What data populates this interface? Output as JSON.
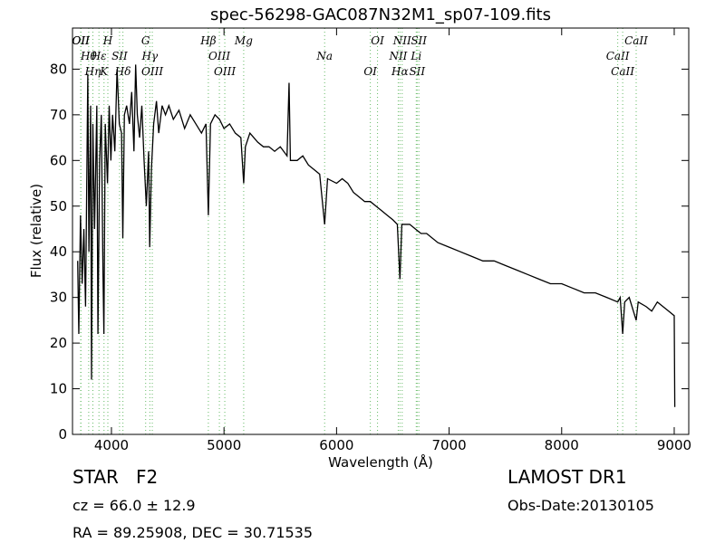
{
  "chart_data": {
    "type": "line",
    "title": "spec-56298-GAC087N32M1_sp07-109.fits",
    "x_label": "Wavelength (Å)",
    "y_label": "Flux (relative)",
    "xlim": [
      3654,
      9129
    ],
    "ylim": [
      0,
      89
    ],
    "xticks": [
      4000,
      5000,
      6000,
      7000,
      8000,
      9000
    ],
    "yticks": [
      0,
      10,
      20,
      30,
      40,
      50,
      60,
      70,
      80
    ],
    "color": "#000000",
    "line_color": "#66bb66",
    "grid": false,
    "x": [
      3700,
      3710,
      3725,
      3740,
      3755,
      3770,
      3790,
      3800,
      3815,
      3823,
      3835,
      3850,
      3870,
      3880,
      3895,
      3910,
      3925,
      3933,
      3945,
      3965,
      3980,
      3995,
      4010,
      4030,
      4050,
      4070,
      4090,
      4101,
      4115,
      4135,
      4160,
      4180,
      4200,
      4215,
      4230,
      4250,
      4270,
      4290,
      4310,
      4330,
      4340,
      4355,
      4375,
      4400,
      4420,
      4450,
      4480,
      4510,
      4550,
      4600,
      4650,
      4700,
      4750,
      4800,
      4840,
      4861,
      4880,
      4920,
      4960,
      5000,
      5050,
      5100,
      5150,
      5175,
      5190,
      5230,
      5300,
      5350,
      5400,
      5450,
      5500,
      5560,
      5578,
      5590,
      5650,
      5700,
      5750,
      5800,
      5850,
      5894,
      5920,
      6000,
      6050,
      6100,
      6150,
      6200,
      6250,
      6300,
      6350,
      6400,
      6450,
      6500,
      6540,
      6563,
      6580,
      6650,
      6700,
      6750,
      6800,
      6900,
      7000,
      7100,
      7200,
      7300,
      7400,
      7500,
      7600,
      7700,
      7800,
      7900,
      8000,
      8100,
      8200,
      8300,
      8400,
      8498,
      8520,
      8542,
      8560,
      8600,
      8662,
      8680,
      8750,
      8800,
      8850,
      8900,
      8950,
      9000,
      9005
    ],
    "values": [
      38,
      22,
      48,
      33,
      45,
      28,
      79,
      40,
      72,
      12,
      68,
      45,
      72,
      22,
      60,
      70,
      35,
      22,
      68,
      55,
      72,
      60,
      70,
      62,
      80,
      68,
      66,
      43,
      70,
      72,
      68,
      75,
      62,
      81,
      70,
      65,
      72,
      60,
      50,
      62,
      41,
      58,
      68,
      73,
      66,
      72,
      70,
      72,
      69,
      71,
      67,
      70,
      68,
      66,
      68,
      48,
      68,
      70,
      69,
      67,
      68,
      66,
      65,
      55,
      63,
      66,
      64,
      63,
      63,
      62,
      63,
      61,
      77,
      60,
      60,
      61,
      59,
      58,
      57,
      46,
      56,
      55,
      56,
      55,
      53,
      52,
      51,
      51,
      50,
      49,
      48,
      47,
      46,
      34,
      46,
      46,
      45,
      44,
      44,
      42,
      41,
      40,
      39,
      38,
      38,
      37,
      36,
      35,
      34,
      33,
      33,
      32,
      31,
      31,
      30,
      29,
      30,
      22,
      29,
      30,
      25,
      29,
      28,
      27,
      29,
      28,
      27,
      26,
      6
    ],
    "lines": [
      {
        "label": "OII",
        "x": 3727
      },
      {
        "label": "Hθ",
        "x": 3798
      },
      {
        "label": "Hη",
        "x": 3835
      },
      {
        "label": "OII",
        "x": 3729
      },
      {
        "label": "Hε",
        "x": 3889
      },
      {
        "label": "K",
        "x": 3934
      },
      {
        "label": "H",
        "x": 3968
      },
      {
        "label": "SII",
        "x": 4072
      },
      {
        "label": "Hδ",
        "x": 4102
      },
      {
        "label": "G",
        "x": 4304
      },
      {
        "label": "Hγ",
        "x": 4341
      },
      {
        "label": "OIII",
        "x": 4363
      },
      {
        "label": "Hβ",
        "x": 4861
      },
      {
        "label": "OIII",
        "x": 4959
      },
      {
        "label": "OIII",
        "x": 5007
      },
      {
        "label": "Mg",
        "x": 5175
      },
      {
        "label": "Na",
        "x": 5894
      },
      {
        "label": "OI",
        "x": 6300
      },
      {
        "label": "OI",
        "x": 6364
      },
      {
        "label": "NII",
        "x": 6548
      },
      {
        "label": "Hα",
        "x": 6563
      },
      {
        "label": "NII",
        "x": 6583
      },
      {
        "label": "Li",
        "x": 6708
      },
      {
        "label": "SII",
        "x": 6716
      },
      {
        "label": "SII",
        "x": 6731
      },
      {
        "label": "CaII",
        "x": 8498
      },
      {
        "label": "CaII",
        "x": 8542
      },
      {
        "label": "CaII",
        "x": 8662
      }
    ]
  },
  "info": {
    "class": "STAR   F2",
    "cz": "cz = 66.0 ± 12.9",
    "coords": "RA = 89.25908, DEC = 30.71535",
    "survey": "LAMOST DR1",
    "date": "Obs-Date:20130105"
  }
}
